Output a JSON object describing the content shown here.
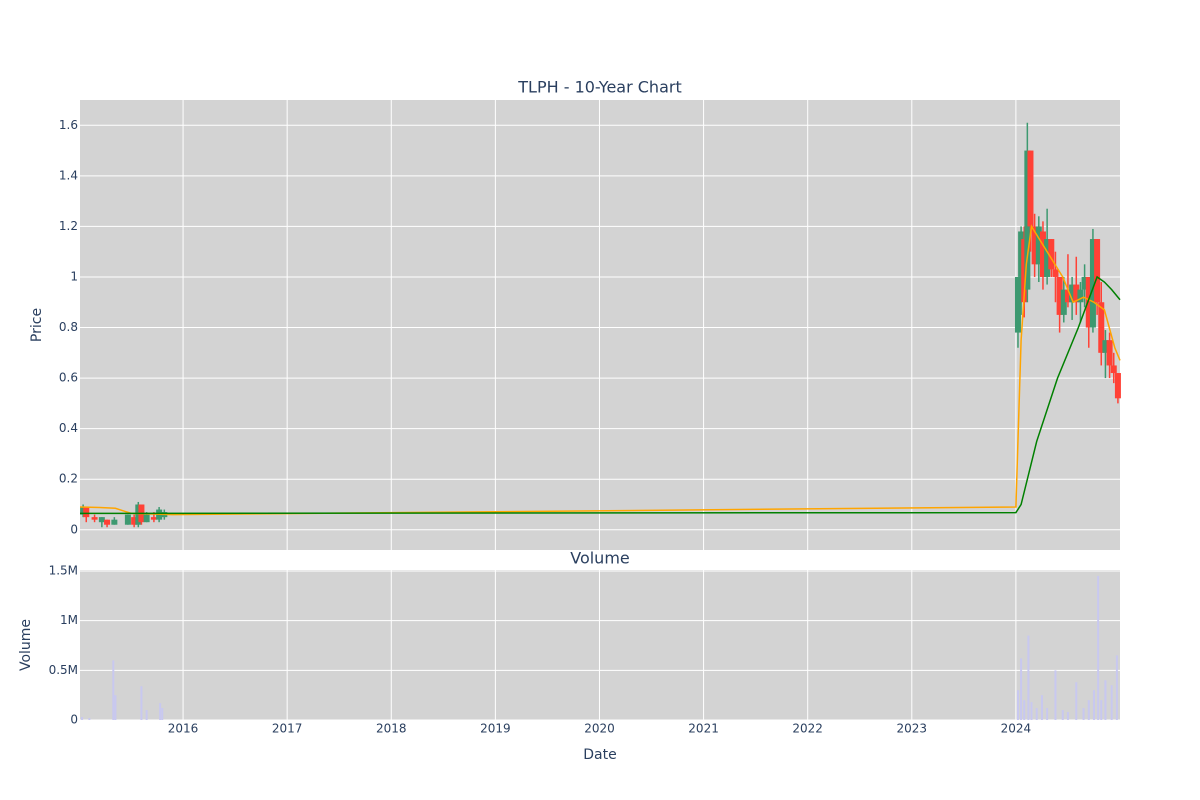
{
  "chart_data": [
    {
      "type": "candlestick",
      "title": "TLPH - 10-Year Chart",
      "ylabel": "Price",
      "x": [
        2015.04,
        2015.07,
        2015.15,
        2015.22,
        2015.27,
        2015.34,
        2015.47,
        2015.53,
        2015.57,
        2015.6,
        2015.65,
        2015.72,
        2015.77,
        2015.82,
        2024.02,
        2024.05,
        2024.08,
        2024.11,
        2024.14,
        2024.18,
        2024.22,
        2024.26,
        2024.3,
        2024.34,
        2024.38,
        2024.42,
        2024.46,
        2024.5,
        2024.54,
        2024.58,
        2024.62,
        2024.66,
        2024.7,
        2024.74,
        2024.78,
        2024.82,
        2024.86,
        2024.9,
        2024.94,
        2024.98
      ],
      "open": [
        0.06,
        0.09,
        0.05,
        0.03,
        0.04,
        0.02,
        0.02,
        0.05,
        0.02,
        0.1,
        0.03,
        0.05,
        0.04,
        0.05,
        0.78,
        1.0,
        1.15,
        0.95,
        1.5,
        1.2,
        1.05,
        1.18,
        1.0,
        1.15,
        1.03,
        1.0,
        0.85,
        0.95,
        0.9,
        0.97,
        0.9,
        0.95,
        1.0,
        0.8,
        1.15,
        0.9,
        0.7,
        0.75,
        0.65,
        0.62
      ],
      "high": [
        0.1,
        0.09,
        0.06,
        0.05,
        0.04,
        0.05,
        0.06,
        0.06,
        0.11,
        0.1,
        0.07,
        0.07,
        0.09,
        0.08,
        1.0,
        1.2,
        1.2,
        1.61,
        1.5,
        1.25,
        1.24,
        1.22,
        1.27,
        1.15,
        1.1,
        1.0,
        1.0,
        1.09,
        1.0,
        1.08,
        0.98,
        1.05,
        1.0,
        1.19,
        1.15,
        0.98,
        0.79,
        0.78,
        0.7,
        0.62
      ],
      "low": [
        0.05,
        0.03,
        0.03,
        0.01,
        0.01,
        0.02,
        0.02,
        0.01,
        0.01,
        0.02,
        0.03,
        0.03,
        0.03,
        0.04,
        0.72,
        0.85,
        0.84,
        0.9,
        1.1,
        1.0,
        0.98,
        0.95,
        0.97,
        1.0,
        0.9,
        0.78,
        0.82,
        0.88,
        0.83,
        0.85,
        0.82,
        0.88,
        0.72,
        0.78,
        0.85,
        0.65,
        0.6,
        0.6,
        0.58,
        0.5
      ],
      "close": [
        0.09,
        0.05,
        0.04,
        0.05,
        0.02,
        0.04,
        0.06,
        0.02,
        0.1,
        0.03,
        0.06,
        0.04,
        0.08,
        0.07,
        1.0,
        1.18,
        0.9,
        1.5,
        1.2,
        1.05,
        1.2,
        1.0,
        1.15,
        1.03,
        1.0,
        0.85,
        0.95,
        0.9,
        0.97,
        0.9,
        0.95,
        1.0,
        0.8,
        1.15,
        0.9,
        0.7,
        0.75,
        0.65,
        0.62,
        0.52
      ],
      "increasing_color": "#3d9970",
      "decreasing_color": "#ff4136",
      "series": [
        {
          "color": "#ffa500",
          "x": [
            2015.01,
            2015.2,
            2015.35,
            2015.5,
            2015.9,
            2024.0,
            2024.05,
            2024.1,
            2024.15,
            2024.3,
            2024.45,
            2024.55,
            2024.65,
            2024.75,
            2024.85,
            2024.95,
            2025.0
          ],
          "values": [
            0.09,
            0.088,
            0.085,
            0.065,
            0.06,
            0.09,
            0.75,
            1.05,
            1.2,
            1.1,
            1.0,
            0.9,
            0.92,
            0.9,
            0.87,
            0.72,
            0.67
          ]
        },
        {
          "color": "#008000",
          "x": [
            2015.01,
            2015.6,
            2024.0,
            2024.05,
            2024.2,
            2024.4,
            2024.6,
            2024.78,
            2024.85,
            2024.92,
            2025.0
          ],
          "values": [
            0.065,
            0.065,
            0.068,
            0.1,
            0.35,
            0.6,
            0.8,
            1.0,
            0.98,
            0.95,
            0.91
          ]
        }
      ],
      "xlim": [
        2015.01,
        2025.0
      ],
      "xticks": [
        2016,
        2017,
        2018,
        2019,
        2020,
        2021,
        2022,
        2023,
        2024
      ],
      "ylim": [
        -0.08,
        1.7
      ],
      "yticks": [
        0,
        0.2,
        0.4,
        0.6,
        0.8,
        1,
        1.2,
        1.4,
        1.6
      ],
      "grid": true
    },
    {
      "type": "bar",
      "title": "Volume",
      "xlabel": "Date",
      "ylabel": "Volume",
      "color": "#c8c8f0",
      "x": [
        2015.03,
        2015.1,
        2015.33,
        2015.35,
        2015.6,
        2015.65,
        2015.78,
        2015.8,
        2024.02,
        2024.05,
        2024.08,
        2024.12,
        2024.15,
        2024.2,
        2024.25,
        2024.3,
        2024.38,
        2024.45,
        2024.5,
        2024.58,
        2024.65,
        2024.7,
        2024.75,
        2024.79,
        2024.82,
        2024.86,
        2024.92,
        2024.97
      ],
      "values": [
        30000,
        20000,
        600000,
        250000,
        340000,
        100000,
        170000,
        120000,
        300000,
        620000,
        200000,
        850000,
        180000,
        120000,
        250000,
        120000,
        500000,
        100000,
        80000,
        380000,
        120000,
        200000,
        300000,
        1450000,
        200000,
        400000,
        350000,
        650000
      ],
      "xlim": [
        2015.01,
        2025.0
      ],
      "xticks": [
        2016,
        2017,
        2018,
        2019,
        2020,
        2021,
        2022,
        2023,
        2024
      ],
      "ylim": [
        0,
        1510000
      ],
      "yticks": [
        0,
        {
          "value": 500000,
          "label": "0.5M"
        },
        {
          "value": 1000000,
          "label": "1M"
        },
        {
          "value": 1500000,
          "label": "1.5M"
        }
      ],
      "grid": true
    }
  ]
}
